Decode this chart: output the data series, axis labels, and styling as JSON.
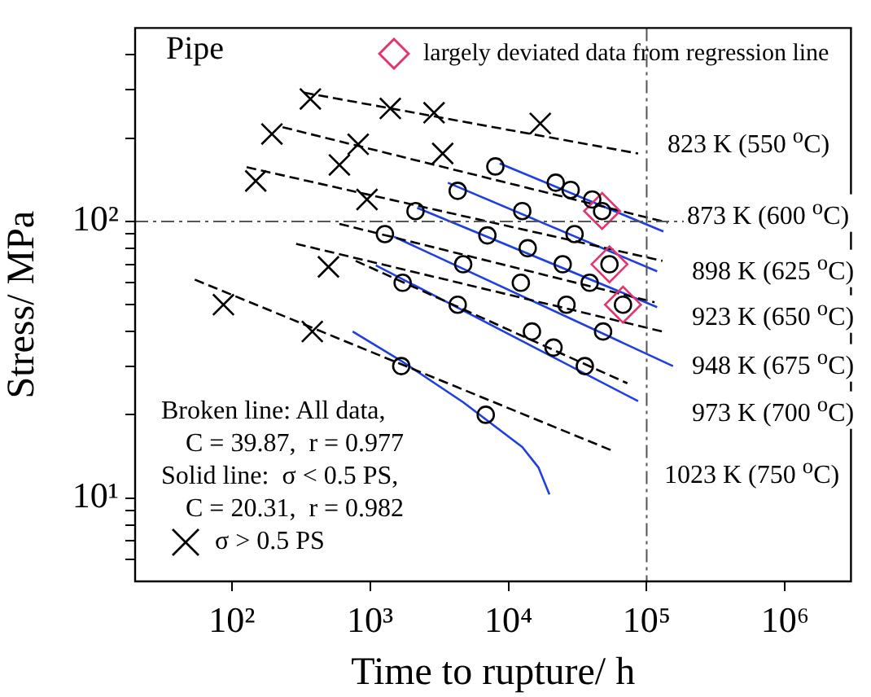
{
  "chart_data": {
    "type": "scatter",
    "xlabel": "Time to rupture/ h",
    "ylabel": "Stress/ MPa",
    "log": "xy",
    "grid": false,
    "legend": "top",
    "xlim": [
      20,
      3000000
    ],
    "xticks": [
      {
        "value": 100,
        "label": "10²"
      },
      {
        "value": 1000,
        "label": "10³"
      },
      {
        "value": 10000,
        "label": "10⁴"
      },
      {
        "value": 100000,
        "label": "10⁵"
      },
      {
        "value": 1000000,
        "label": "10⁶"
      }
    ],
    "ylim": [
      5,
      500
    ],
    "yticks": [
      {
        "value": 6,
        "label": null
      },
      {
        "value": 7,
        "label": null
      },
      {
        "value": 8,
        "label": null
      },
      {
        "value": 9,
        "label": null
      },
      {
        "value": 10,
        "label": "10¹"
      },
      {
        "value": 20,
        "label": null
      },
      {
        "value": 30,
        "label": null
      },
      {
        "value": 40,
        "label": null
      },
      {
        "value": 50,
        "label": null
      },
      {
        "value": 60,
        "label": null
      },
      {
        "value": 70,
        "label": null
      },
      {
        "value": 80,
        "label": null
      },
      {
        "value": 90,
        "label": null
      },
      {
        "value": 100,
        "label": "10²"
      },
      {
        "value": 200,
        "label": null
      },
      {
        "value": 300,
        "label": null
      },
      {
        "value": 400,
        "label": null
      }
    ],
    "ref_lines": [
      {
        "axis": "y",
        "value": 100,
        "color": "#555555"
      },
      {
        "axis": "x",
        "value": 100000,
        "color": "#555555"
      }
    ],
    "annotations": [
      "Pipe",
      "823 K (550 $^{o}$C)",
      "873 K (600 $^{o}$C)",
      "898 K (625 $^{o}$C)",
      "923 K (650 $^{o}$C)",
      "948 K (675 $^{o}$C)",
      "973 K (700 $^{o}$C)",
      "1023 K (750 $^{o}$C)",
      "Broken line: All data,",
      "C = 39.87,  r = 0.977",
      "Solid line:  σ < 0.5 PS,",
      "C = 20.31,  r = 0.982"
    ],
    "series": [
      {
        "marker": "circle",
        "color": "#000000",
        "x": [
          8050,
          22000,
          28200,
          40400,
          47600,
          4300,
          12600,
          30100,
          53800,
          2130,
          7050,
          13800,
          24700,
          38700,
          67400,
          1280,
          4710,
          12300,
          26300,
          48400,
          1720,
          4300,
          14800,
          21200,
          35700,
          1680,
          6860
        ],
        "values": [
          158,
          138,
          130,
          120,
          109,
          129,
          109,
          90,
          70,
          109,
          89,
          80,
          70,
          60,
          50,
          90,
          70,
          60,
          50,
          40,
          60,
          50,
          40,
          35,
          30,
          30,
          20
        ]
      },
      {
        "name": "largely deviated data from regression line",
        "marker": "diamond",
        "color": "#e6326e",
        "x": [
          47600,
          53800,
          67400
        ],
        "values": [
          109,
          70,
          50
        ]
      },
      {
        "name": "σ > 0.5 PS",
        "marker": "cross",
        "color": "#000000",
        "x": [
          370,
          1400,
          2900,
          17000,
          195,
          820,
          3350,
          149,
          600,
          950,
          500,
          87,
          382
        ],
        "values": [
          277,
          256,
          247,
          226,
          207,
          190,
          176,
          140,
          160,
          120,
          68.5,
          50,
          40
        ]
      },
      {
        "type": "line",
        "marker": "none",
        "line_style": "dashed",
        "color": "#000000",
        "x": [
          333,
          86700
        ],
        "values": [
          292,
          176
        ]
      },
      {
        "type": "line",
        "marker": "none",
        "line_style": "dashed",
        "color": "#000000",
        "x": [
          233,
          142000
        ],
        "values": [
          219,
          99
        ]
      },
      {
        "type": "line",
        "marker": "none",
        "line_style": "dashed",
        "color": "#000000",
        "x": [
          128,
          130000
        ],
        "values": [
          157,
          72
        ]
      },
      {
        "type": "line",
        "marker": "none",
        "line_style": "dashed",
        "color": "#000000",
        "x": [
          600,
          114000
        ],
        "values": [
          98,
          51
        ]
      },
      {
        "type": "line",
        "marker": "none",
        "line_style": "dashed",
        "color": "#000000",
        "x": [
          292,
          130000
        ],
        "values": [
          83,
          40
        ]
      },
      {
        "type": "line",
        "marker": "none",
        "line_style": "dashed",
        "color": "#000000",
        "x": [
          787,
          72500
        ],
        "values": [
          72,
          26
        ]
      },
      {
        "type": "line",
        "marker": "none",
        "line_style": "dashed",
        "color": "#000000",
        "x": [
          54,
          59000
        ],
        "values": [
          61.6,
          14.7
        ]
      },
      {
        "type": "line",
        "marker": "none",
        "line_style": "solid",
        "color": "#1f3fe0",
        "x": [
          8650,
          132000
        ],
        "values": [
          162,
          92
        ]
      },
      {
        "type": "line",
        "marker": "none",
        "line_style": "solid",
        "color": "#1f3fe0",
        "x": [
          3650,
          119000
        ],
        "values": [
          138,
          66
        ]
      },
      {
        "type": "line",
        "marker": "none",
        "line_style": "solid",
        "color": "#1f3fe0",
        "x": [
          2190,
          119000
        ],
        "values": [
          112,
          49
        ]
      },
      {
        "type": "line",
        "marker": "none",
        "line_style": "solid",
        "color": "#1f3fe0",
        "x": [
          1490,
          155000
        ],
        "values": [
          88,
          30
        ]
      },
      {
        "type": "line",
        "marker": "none",
        "line_style": "solid",
        "color": "#1f3fe0",
        "x": [
          1100,
          86700
        ],
        "values": [
          69.4,
          22.4
        ]
      },
      {
        "type": "line",
        "marker": "none",
        "line_style": "solid",
        "color": "#1f3fe0",
        "x": [
          748,
          1750,
          4710,
          12600,
          16500,
          19800
        ],
        "values": [
          40,
          30.9,
          22.2,
          15.3,
          12.9,
          10.3
        ]
      }
    ]
  }
}
